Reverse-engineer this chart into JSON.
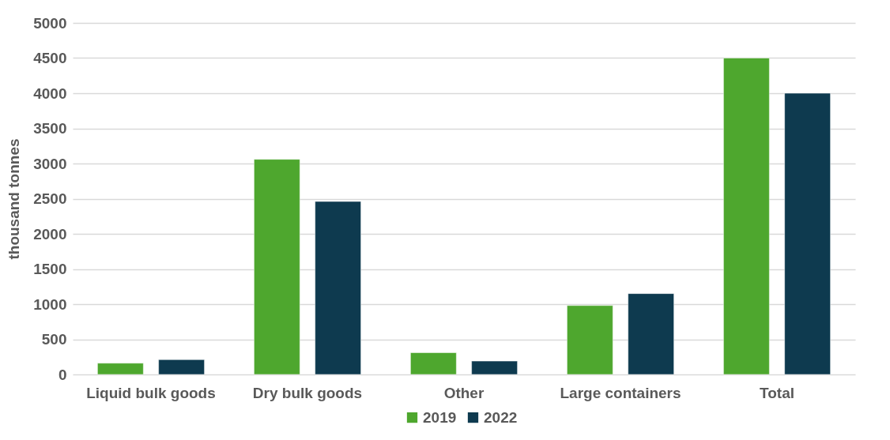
{
  "chart_data": {
    "type": "bar",
    "ylabel": "thousand tonnes",
    "categories": [
      "Liquid bulk goods",
      "Dry bulk goods",
      "Other",
      "Large containers",
      "Total"
    ],
    "series": [
      {
        "name": "2019",
        "color": "#4ea72e",
        "values": [
          160,
          3060,
          310,
          980,
          4500
        ]
      },
      {
        "name": "2022",
        "color": "#0e3a4f",
        "values": [
          210,
          2460,
          190,
          1150,
          4000
        ]
      }
    ],
    "ylim": [
      0,
      5000
    ],
    "yticks": [
      0,
      500,
      1000,
      1500,
      2000,
      2500,
      3000,
      3500,
      4000,
      4500,
      5000
    ],
    "grid": "y",
    "legend": "bottom"
  }
}
